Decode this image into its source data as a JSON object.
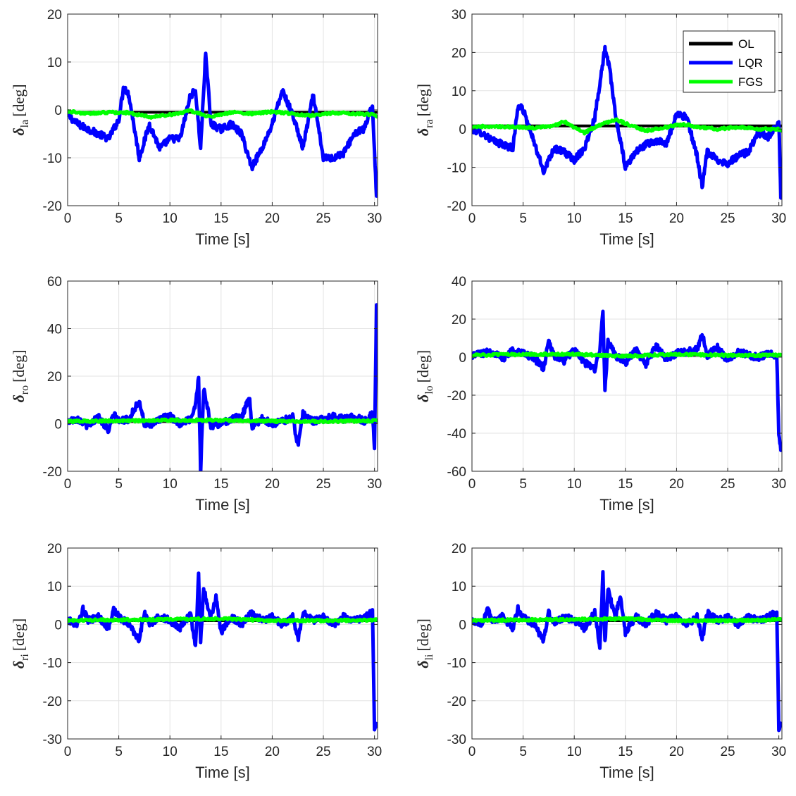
{
  "figure": {
    "legend": [
      {
        "name": "OL",
        "color": "#000000"
      },
      {
        "name": "LQR",
        "color": "#0000ff"
      },
      {
        "name": "FGS",
        "color": "#00ff00"
      }
    ]
  },
  "chart_data": [
    {
      "type": "line",
      "panel": "top-left",
      "xlabel": "Time [s]",
      "ylabel_symbol": "δ",
      "ylabel_sub": "la",
      "ylabel_unit": "[deg]",
      "xlim": [
        0,
        30.3
      ],
      "ylim": [
        -20,
        20
      ],
      "xticks": [
        0,
        5,
        10,
        15,
        20,
        25,
        30
      ],
      "yticks": [
        -20,
        -10,
        0,
        10,
        20
      ],
      "legend_position": "none",
      "series": [
        {
          "name": "OL",
          "color": "#000000",
          "x": [
            0,
            30.3
          ],
          "y": [
            -0.5,
            -0.5
          ]
        },
        {
          "name": "LQR",
          "color": "#0000ff",
          "x": [
            0,
            1,
            2,
            3,
            4,
            5,
            5.5,
            6,
            7,
            8,
            9,
            10,
            11,
            12,
            12.5,
            13,
            13.5,
            14,
            15,
            16,
            17,
            18,
            19,
            20,
            21,
            22,
            23,
            24,
            25,
            26,
            27,
            28,
            29,
            29.8,
            30.2
          ],
          "y": [
            -1,
            -3,
            -4,
            -5,
            -6,
            -2,
            5,
            3,
            -10,
            -3,
            -8,
            -6,
            -6,
            3,
            4,
            -8,
            12,
            -3,
            -4,
            -3,
            -5,
            -12,
            -8,
            -3,
            4,
            -1,
            -8,
            3,
            -10,
            -10,
            -9,
            -5,
            -4,
            1,
            -18
          ]
        },
        {
          "name": "FGS",
          "color": "#00ff00",
          "x": [
            0,
            2,
            4,
            6,
            8,
            10,
            12,
            14,
            16,
            18,
            20,
            22,
            24,
            26,
            28,
            30,
            30.3
          ],
          "y": [
            -0.3,
            -0.8,
            -0.5,
            -0.6,
            -1.5,
            -1,
            -0.2,
            -1.5,
            -0.5,
            -0.8,
            -0.4,
            -0.8,
            -1.2,
            -0.6,
            -0.8,
            -1,
            -1.4
          ]
        }
      ]
    },
    {
      "type": "line",
      "panel": "top-right",
      "xlabel": "Time [s]",
      "ylabel_symbol": "δ",
      "ylabel_sub": "ra",
      "ylabel_unit": "[deg]",
      "xlim": [
        0,
        30.3
      ],
      "ylim": [
        -20,
        30
      ],
      "xticks": [
        0,
        5,
        10,
        15,
        20,
        25,
        30
      ],
      "yticks": [
        -20,
        -10,
        0,
        10,
        20,
        30
      ],
      "legend_position": "top-right",
      "series": [
        {
          "name": "OL",
          "color": "#000000",
          "x": [
            0,
            30.3
          ],
          "y": [
            0.8,
            0.8
          ]
        },
        {
          "name": "LQR",
          "color": "#0000ff",
          "x": [
            0,
            1,
            2,
            3,
            4,
            4.5,
            5,
            6,
            7,
            8,
            9,
            10,
            11,
            12,
            13,
            13.5,
            14,
            15,
            16,
            17,
            18,
            19,
            20,
            21,
            22,
            22.5,
            23,
            24,
            25,
            26,
            27,
            28,
            29,
            30,
            30.2
          ],
          "y": [
            0,
            -1,
            -3,
            -4,
            -5,
            6,
            5,
            -3,
            -11,
            -5,
            -6,
            -8,
            -5,
            3,
            21,
            15,
            4,
            -10,
            -6,
            -4,
            -3,
            -4,
            4,
            3,
            -7,
            -15,
            -6,
            -8,
            -9,
            -7,
            -6,
            -1,
            -2,
            2,
            -18
          ]
        },
        {
          "name": "FGS",
          "color": "#00ff00",
          "x": [
            0,
            2,
            4,
            6,
            8,
            9,
            10,
            11,
            12,
            13,
            14,
            15,
            16,
            17,
            18,
            19,
            20,
            21,
            22,
            24,
            26,
            28,
            30,
            30.3
          ],
          "y": [
            0.5,
            0.8,
            0.5,
            0.3,
            0.8,
            2,
            0.5,
            -1,
            0.5,
            1.5,
            2.5,
            1.5,
            0.5,
            -0.5,
            0,
            0.5,
            1,
            1.2,
            0.5,
            0,
            0.5,
            0,
            0,
            -0.5
          ]
        }
      ]
    },
    {
      "type": "line",
      "panel": "middle-left",
      "xlabel": "Time [s]",
      "ylabel_symbol": "δ",
      "ylabel_sub": "ro",
      "ylabel_unit": "[deg]",
      "xlim": [
        0,
        30.3
      ],
      "ylim": [
        -20,
        60
      ],
      "xticks": [
        0,
        5,
        10,
        15,
        20,
        25,
        30
      ],
      "yticks": [
        -20,
        0,
        20,
        40,
        60
      ],
      "legend_position": "none",
      "series": [
        {
          "name": "OL",
          "color": "#000000",
          "x": [
            0,
            30.3
          ],
          "y": [
            1,
            1
          ]
        },
        {
          "name": "LQR",
          "color": "#0000ff",
          "x": [
            0,
            1,
            2,
            3,
            4,
            4.5,
            5,
            6,
            6.5,
            7,
            7.5,
            8,
            9,
            10,
            11,
            12,
            12.5,
            12.8,
            13,
            13.3,
            14,
            15,
            16,
            17,
            17.8,
            18,
            19,
            20,
            21,
            22,
            22.5,
            23,
            24,
            25,
            26,
            27,
            28,
            29,
            29.8,
            30,
            30.2
          ],
          "y": [
            1,
            2,
            -1,
            3,
            -3,
            4,
            1,
            2,
            6,
            10,
            0,
            -1,
            2,
            3,
            0,
            2,
            8,
            20,
            -20,
            15,
            -1,
            0,
            2,
            3,
            11,
            -1,
            2,
            0,
            1,
            3,
            -9,
            4,
            1,
            2,
            3,
            2,
            3,
            1,
            4,
            -10,
            50
          ]
        },
        {
          "name": "FGS",
          "color": "#00ff00",
          "x": [
            0,
            5,
            10,
            15,
            20,
            25,
            30,
            30.3
          ],
          "y": [
            1,
            1.2,
            1.5,
            1.5,
            1,
            1,
            1.2,
            1.2
          ]
        }
      ]
    },
    {
      "type": "line",
      "panel": "middle-right",
      "xlabel": "Time [s]",
      "ylabel_symbol": "δ",
      "ylabel_sub": "lo",
      "ylabel_unit": "[deg]",
      "xlim": [
        0,
        30.3
      ],
      "ylim": [
        -60,
        40
      ],
      "xticks": [
        0,
        5,
        10,
        15,
        20,
        25,
        30
      ],
      "yticks": [
        -60,
        -40,
        -20,
        0,
        20,
        40
      ],
      "legend_position": "none",
      "series": [
        {
          "name": "OL",
          "color": "#000000",
          "x": [
            0,
            30.3
          ],
          "y": [
            1,
            1
          ]
        },
        {
          "name": "LQR",
          "color": "#0000ff",
          "x": [
            0,
            1,
            2,
            3,
            4,
            5,
            6,
            7,
            7.5,
            8,
            9,
            10,
            11,
            12,
            12.5,
            12.8,
            13,
            13.3,
            14,
            15,
            16,
            17,
            18,
            19,
            20,
            21,
            22,
            22.5,
            23,
            24,
            25,
            26,
            27,
            28,
            29,
            29.8,
            30,
            30.2
          ],
          "y": [
            1,
            2,
            3,
            -1,
            4,
            2,
            0,
            -6,
            8,
            1,
            -2,
            4,
            -3,
            -6,
            4,
            24,
            -17,
            8,
            1,
            -3,
            4,
            -4,
            6,
            -1,
            2,
            3,
            4,
            12,
            1,
            5,
            -2,
            3,
            1,
            0,
            2,
            0,
            -40,
            -49
          ]
        },
        {
          "name": "FGS",
          "color": "#00ff00",
          "x": [
            0,
            5,
            10,
            15,
            20,
            25,
            30,
            30.3
          ],
          "y": [
            1,
            1.5,
            1.5,
            0.5,
            1.5,
            1,
            1,
            1
          ]
        }
      ]
    },
    {
      "type": "line",
      "panel": "bottom-left",
      "xlabel": "Time [s]",
      "ylabel_symbol": "δ",
      "ylabel_sub": "ri",
      "ylabel_unit": "[deg]",
      "xlim": [
        0,
        30.3
      ],
      "ylim": [
        -30,
        20
      ],
      "xticks": [
        0,
        5,
        10,
        15,
        20,
        25,
        30
      ],
      "yticks": [
        -30,
        -20,
        -10,
        0,
        10,
        20
      ],
      "legend_position": "none",
      "series": [
        {
          "name": "OL",
          "color": "#000000",
          "x": [
            0,
            30.3
          ],
          "y": [
            1,
            1
          ]
        },
        {
          "name": "LQR",
          "color": "#0000ff",
          "x": [
            0,
            1,
            1.5,
            2,
            3,
            4,
            4.5,
            5,
            6,
            7,
            7.5,
            8,
            9,
            10,
            11,
            12,
            12.5,
            12.8,
            13,
            13.3,
            14,
            14.5,
            15,
            16,
            17,
            18,
            19,
            20,
            21,
            22,
            22.5,
            23,
            24,
            25,
            26,
            27,
            28,
            29,
            29.8,
            30,
            30.2
          ],
          "y": [
            1,
            0,
            4,
            1,
            2,
            -1,
            4,
            2,
            0,
            -4,
            3,
            0,
            2,
            1,
            -1,
            3,
            -6,
            13,
            -5,
            9,
            2,
            7,
            -2,
            2,
            0,
            3,
            1,
            2,
            0,
            2,
            -4,
            3,
            1,
            2,
            0,
            2,
            1,
            2,
            3,
            -27,
            -26
          ]
        },
        {
          "name": "FGS",
          "color": "#00ff00",
          "x": [
            0,
            5,
            10,
            15,
            20,
            25,
            30,
            30.3
          ],
          "y": [
            1,
            1.2,
            1.3,
            1.5,
            1,
            1,
            1.2,
            1.2
          ]
        }
      ]
    },
    {
      "type": "line",
      "panel": "bottom-right",
      "xlabel": "Time [s]",
      "ylabel_symbol": "δ",
      "ylabel_sub": "li",
      "ylabel_unit": "[deg]",
      "xlim": [
        0,
        30.3
      ],
      "ylim": [
        -30,
        20
      ],
      "xticks": [
        0,
        5,
        10,
        15,
        20,
        25,
        30
      ],
      "yticks": [
        -30,
        -20,
        -10,
        0,
        10,
        20
      ],
      "legend_position": "none",
      "series": [
        {
          "name": "OL",
          "color": "#000000",
          "x": [
            0,
            30.3
          ],
          "y": [
            1,
            1
          ]
        },
        {
          "name": "LQR",
          "color": "#0000ff",
          "x": [
            0,
            1,
            1.5,
            2,
            3,
            4,
            4.5,
            5,
            6,
            7,
            7.5,
            8,
            9,
            10,
            11,
            12,
            12.5,
            12.8,
            13,
            13.3,
            14,
            14.5,
            15,
            16,
            17,
            18,
            19,
            20,
            21,
            22,
            22.5,
            23,
            24,
            25,
            26,
            27,
            28,
            29,
            29.8,
            30,
            30.2
          ],
          "y": [
            1,
            0,
            4,
            1,
            2,
            -1,
            4,
            2,
            0,
            -4,
            3,
            0,
            2,
            1,
            -1,
            3,
            -6,
            13,
            -5,
            9,
            2,
            7,
            -2,
            2,
            0,
            3,
            1,
            2,
            0,
            2,
            -4,
            3,
            1,
            2,
            0,
            2,
            1,
            2,
            3,
            -27,
            -26
          ]
        },
        {
          "name": "FGS",
          "color": "#00ff00",
          "x": [
            0,
            5,
            10,
            15,
            20,
            25,
            30,
            30.3
          ],
          "y": [
            1,
            1.2,
            1.3,
            1.5,
            1,
            1,
            1.2,
            1.2
          ]
        }
      ]
    }
  ]
}
